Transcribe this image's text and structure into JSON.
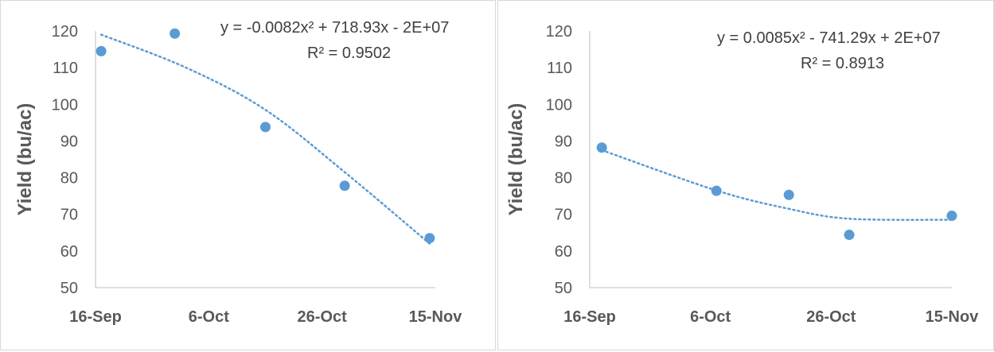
{
  "chart_data": [
    {
      "type": "scatter",
      "title": "",
      "xlabel": "",
      "ylabel": "Yield (bu/ac)",
      "x_ticks": [
        "16-Sep",
        "6-Oct",
        "26-Oct",
        "15-Nov"
      ],
      "x_range": [
        "2019-09-16",
        "2019-11-15"
      ],
      "ylim": [
        50,
        120
      ],
      "y_ticks": [
        50,
        60,
        70,
        80,
        90,
        100,
        110,
        120
      ],
      "grid": false,
      "series": [
        {
          "points": [
            {
              "x": "2019-09-17",
              "y": 114.5
            },
            {
              "x": "2019-09-30",
              "y": 119.3
            },
            {
              "x": "2019-10-16",
              "y": 93.8
            },
            {
              "x": "2019-10-30",
              "y": 77.8
            },
            {
              "x": "2019-11-14",
              "y": 63.5
            }
          ],
          "color": "#5b9bd5"
        }
      ],
      "trendline": {
        "type": "polynomial",
        "order": 2,
        "equation": "y = -0.0082x² + 718.93x - 2E+07",
        "r_squared": "R² = 0.9502",
        "points": [
          {
            "x": "2019-09-17",
            "y": 119.0
          },
          {
            "x": "2019-10-02",
            "y": 110.0
          },
          {
            "x": "2019-10-16",
            "y": 98.5
          },
          {
            "x": "2019-10-30",
            "y": 81.5
          },
          {
            "x": "2019-11-14",
            "y": 62.0
          }
        ]
      }
    },
    {
      "type": "scatter",
      "title": "",
      "xlabel": "",
      "ylabel": "Yield (bu/ac)",
      "x_ticks": [
        "16-Sep",
        "6-Oct",
        "26-Oct",
        "15-Nov"
      ],
      "x_range": [
        "2019-09-16",
        "2019-11-15"
      ],
      "ylim": [
        50,
        120
      ],
      "y_ticks": [
        50,
        60,
        70,
        80,
        90,
        100,
        110,
        120
      ],
      "grid": false,
      "series": [
        {
          "points": [
            {
              "x": "2019-09-18",
              "y": 88.2
            },
            {
              "x": "2019-10-07",
              "y": 76.4
            },
            {
              "x": "2019-10-19",
              "y": 75.3
            },
            {
              "x": "2019-10-29",
              "y": 64.4
            },
            {
              "x": "2019-11-15",
              "y": 69.6
            }
          ],
          "color": "#5b9bd5"
        }
      ],
      "trendline": {
        "type": "polynomial",
        "order": 2,
        "equation": "y = 0.0085x² - 741.29x + 2E+07",
        "r_squared": "R² = 0.8913",
        "points": [
          {
            "x": "2019-09-18",
            "y": 87.5
          },
          {
            "x": "2019-10-07",
            "y": 76.5
          },
          {
            "x": "2019-10-19",
            "y": 71.5
          },
          {
            "x": "2019-10-29",
            "y": 68.8
          },
          {
            "x": "2019-11-15",
            "y": 68.5
          }
        ]
      }
    }
  ]
}
